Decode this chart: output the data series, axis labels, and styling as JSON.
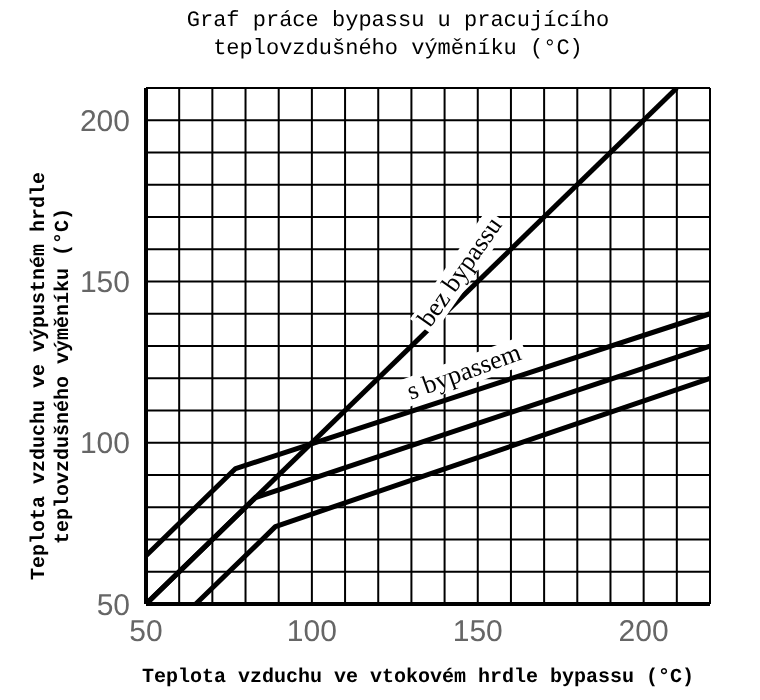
{
  "chart_data": {
    "type": "line",
    "title": "Graf práce bypassu u pracujícího teplovzdušného výměníku (°C)",
    "xlabel": "Teplota vzduchu ve vtokovém hrdle bypassu (°C)",
    "ylabel": "Teplota vzduchu ve výpustném hrdle teplovzdušného výměníku (°C)",
    "series": [
      {
        "color": "#000000",
        "x": [
          50,
          210
        ],
        "values": [
          50,
          210
        ]
      },
      {
        "color": "#000000",
        "x": [
          50,
          77,
          220
        ],
        "values": [
          65,
          92,
          140
        ]
      },
      {
        "color": "#000000",
        "x": [
          50,
          83,
          220
        ],
        "values": [
          50,
          83,
          130
        ]
      },
      {
        "color": "#000000",
        "x": [
          65,
          89,
          220
        ],
        "values": [
          50,
          74,
          120
        ]
      }
    ],
    "xlim": [
      50,
      220
    ],
    "ylim": [
      50,
      210
    ],
    "xticks": [
      50,
      {
        "value": 60,
        "label": null
      },
      {
        "value": 70,
        "label": null
      },
      {
        "value": 80,
        "label": null
      },
      {
        "value": 90,
        "label": null
      },
      100,
      {
        "value": 110,
        "label": null
      },
      {
        "value": 120,
        "label": null
      },
      {
        "value": 130,
        "label": null
      },
      {
        "value": 140,
        "label": null
      },
      150,
      {
        "value": 160,
        "label": null
      },
      {
        "value": 170,
        "label": null
      },
      {
        "value": 180,
        "label": null
      },
      {
        "value": 190,
        "label": null
      },
      200,
      {
        "value": 210,
        "label": null
      },
      {
        "value": 220,
        "label": null
      }
    ],
    "yticks": [
      50,
      {
        "value": 60,
        "label": null
      },
      {
        "value": 70,
        "label": null
      },
      {
        "value": 80,
        "label": null
      },
      {
        "value": 90,
        "label": null
      },
      100,
      {
        "value": 110,
        "label": null
      },
      {
        "value": 120,
        "label": null
      },
      {
        "value": 130,
        "label": null
      },
      {
        "value": 140,
        "label": null
      },
      150,
      {
        "value": 160,
        "label": null
      },
      {
        "value": 170,
        "label": null
      },
      {
        "value": 180,
        "label": null
      },
      {
        "value": 190,
        "label": null
      },
      200,
      {
        "value": 210,
        "label": null
      }
    ],
    "grid": true,
    "annotations": [
      "bez bypassu",
      "s bypassem"
    ]
  }
}
